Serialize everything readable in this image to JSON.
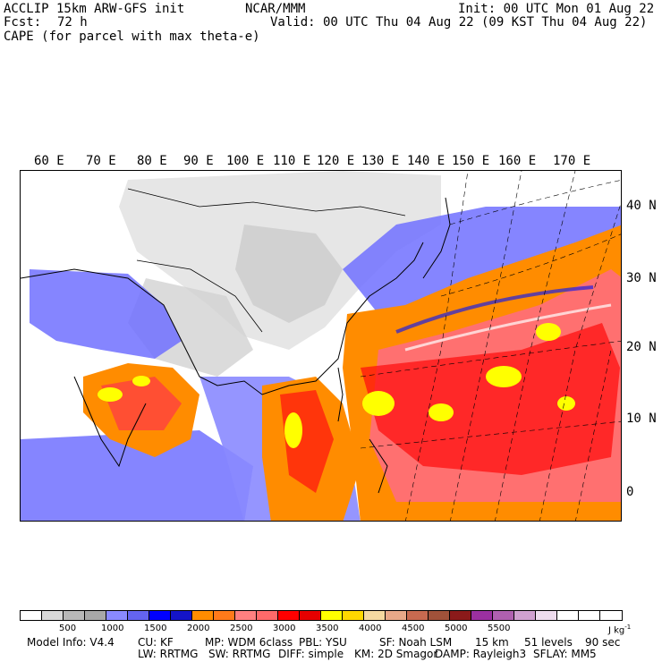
{
  "header": {
    "model": "ACCLIP 15km ARW-GFS init",
    "org": "NCAR/MMM",
    "init": "Init: 00 UTC Mon 01 Aug 22",
    "fcst_label": "Fcst:",
    "fcst_value": "72 h",
    "valid": "Valid: 00 UTC Thu 04 Aug 22 (09 KST Thu 04 Aug 22)",
    "field": "CAPE (for parcel with max theta-e)"
  },
  "lon_labels": [
    "60 E",
    "70 E",
    "80 E",
    "90 E",
    "100 E",
    "110 E",
    "120 E",
    "130 E",
    "140 E",
    "150 E",
    "160 E",
    "170 E"
  ],
  "lat_labels": [
    "40 N",
    "30 N",
    "20 N",
    "10 N",
    "0"
  ],
  "colorbar": {
    "colors": [
      "#ffffff",
      "#d9d9d9",
      "#b8b8b8",
      "#a8a8a8",
      "#8a8aff",
      "#6464f0",
      "#0000ff",
      "#1414c8",
      "#ff8c00",
      "#ff7a1a",
      "#ff8080",
      "#ff6a6a",
      "#ff0000",
      "#e60000",
      "#ffff00",
      "#ffd700",
      "#f5d9a0",
      "#e8a888",
      "#c86a50",
      "#a0523a",
      "#8b1a1a",
      "#9b30a0",
      "#b060b0",
      "#d0a0d0",
      "#eedcee",
      "#ffffff",
      "#ffffff",
      "#ffffff"
    ],
    "ticks": [
      "500",
      "1000",
      "1500",
      "2000",
      "2500",
      "3000",
      "3500",
      "4000",
      "4500",
      "5000",
      "5500"
    ],
    "unit": "J kg",
    "unit_exp": "-1"
  },
  "footer": {
    "line1": [
      "Model Info: V4.4",
      "CU: KF",
      "MP: WDM 6class",
      "PBL: YSU",
      "SF: Noah LSM",
      "15 km",
      "51 levels",
      "90 sec"
    ],
    "line2": [
      "LW: RRTMG",
      "SW: RRTMG",
      "DIFF: simple",
      "KM: 2D Smagor",
      "DAMP: Rayleigh3",
      "SFLAY: MM5"
    ]
  },
  "map": {
    "cape_colors": {
      "land_gray": "#c8c8c8",
      "light_gray": "#e0e0e0",
      "blue": "#7070ff",
      "dark_blue": "#2020e0",
      "orange": "#ff8c00",
      "salmon": "#ff7070",
      "red": "#ff1010",
      "yellow": "#ffff00"
    }
  }
}
